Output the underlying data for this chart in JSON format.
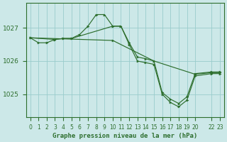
{
  "bg_color": "#cce8e8",
  "line_color": "#2d6e2d",
  "grid_color": "#99cccc",
  "xlabel": "Graphe pression niveau de la mer (hPa)",
  "xlim": [
    -0.5,
    23.5
  ],
  "ylim": [
    1024.3,
    1027.75
  ],
  "yticks": [
    1025,
    1026,
    1027
  ],
  "line1_x": [
    0,
    1,
    2,
    3,
    4,
    5,
    6,
    7,
    8,
    9,
    10,
    11,
    12,
    13,
    14,
    15,
    16,
    17,
    18,
    19,
    20,
    22,
    23
  ],
  "line1_y": [
    1026.7,
    1026.55,
    1026.55,
    1026.65,
    1026.68,
    1026.68,
    1026.8,
    1027.05,
    1027.4,
    1027.4,
    1027.05,
    1027.05,
    1026.55,
    1026.12,
    1026.07,
    1026.0,
    1025.05,
    1024.85,
    1024.72,
    1024.92,
    1025.62,
    1025.67,
    1025.67
  ],
  "line2_x": [
    0,
    3,
    4,
    5,
    10,
    11,
    12,
    13,
    14,
    15,
    16,
    17,
    18,
    19,
    20,
    22,
    23
  ],
  "line2_y": [
    1026.7,
    1026.65,
    1026.68,
    1026.68,
    1027.05,
    1027.05,
    1026.5,
    1026.0,
    1025.95,
    1025.9,
    1025.0,
    1024.75,
    1024.62,
    1024.82,
    1025.55,
    1025.62,
    1025.62
  ],
  "line3_x": [
    0,
    10,
    15,
    20,
    22,
    23
  ],
  "line3_y": [
    1026.7,
    1026.62,
    1026.0,
    1025.6,
    1025.65,
    1025.65
  ]
}
